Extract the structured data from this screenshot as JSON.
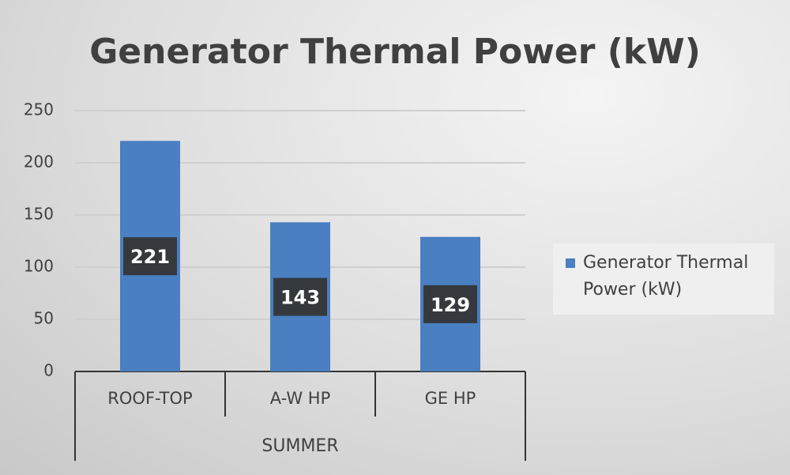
{
  "chart_data": {
    "type": "bar",
    "title": "Generator Thermal Power (kW)",
    "categories": [
      "ROOF-TOP",
      "A-W HP",
      "GE HP"
    ],
    "group_label": "SUMMER",
    "series": [
      {
        "name": "Generator Thermal Power (kW)",
        "color": "#4a7fc1",
        "values": [
          221,
          143,
          129
        ]
      }
    ],
    "ylim": [
      0,
      250
    ],
    "yticks": [
      0,
      50,
      100,
      150,
      200,
      250
    ],
    "grid": true,
    "legend": "right"
  }
}
